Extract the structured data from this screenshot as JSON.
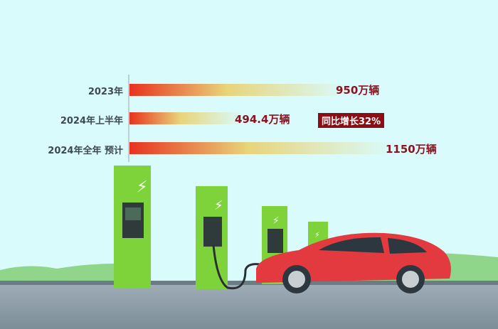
{
  "chart_data": {
    "type": "bar",
    "orientation": "horizontal",
    "categories": [
      "2023年",
      "2024年上半年",
      "2024年全年 预计"
    ],
    "values": [
      950,
      494.4,
      1150
    ],
    "unit": "万辆",
    "data_labels": [
      "950万辆",
      "494.4万辆",
      "1150万辆"
    ],
    "annotation": "同比增长32%",
    "colors": {
      "bar_start": "#e8321e",
      "bar_mid": "#e8d47a",
      "bar_end": "#d9fbfb",
      "label": "#8c1420",
      "badge": "#8c0d14",
      "background": "#d9fbfb"
    }
  }
}
